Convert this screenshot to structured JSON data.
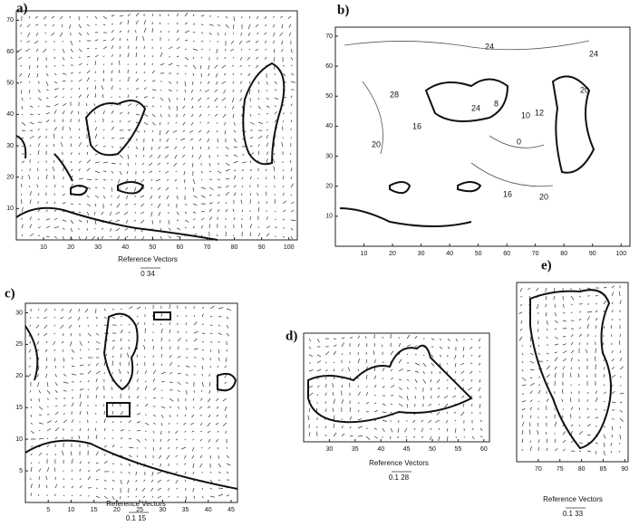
{
  "panels": [
    {
      "label": "a)",
      "xticks": [
        10,
        20,
        30,
        40,
        50,
        60,
        70,
        80,
        90,
        100
      ],
      "yticks": [
        10,
        20,
        30,
        40,
        50,
        60,
        70
      ],
      "reference": {
        "title": "Reference Vectors",
        "scale": "0  34"
      }
    },
    {
      "label": "b)",
      "xticks": [
        10,
        20,
        30,
        40,
        50,
        60,
        70,
        80,
        90,
        100
      ],
      "yticks": [
        10,
        20,
        30,
        40,
        50,
        60,
        70
      ],
      "contour_labels": [
        "24",
        "28",
        "24",
        "8",
        "10",
        "12",
        "0",
        "16",
        "20",
        "16",
        "20",
        "24",
        "20"
      ]
    },
    {
      "label": "c)",
      "xticks": [
        5,
        10,
        15,
        20,
        25,
        30,
        35,
        40,
        45
      ],
      "yticks": [
        5,
        10,
        15,
        20,
        25,
        30
      ],
      "reference": {
        "title": "Reference Vectors",
        "scale": "0.1  15"
      }
    },
    {
      "label": "d)",
      "xticks": [
        30,
        35,
        40,
        45,
        50,
        55,
        60
      ],
      "yticks": [],
      "reference": {
        "title": "Reference Vectors",
        "scale": "0.1  28"
      }
    },
    {
      "label": "e)",
      "xticks": [
        70,
        75,
        80,
        85,
        90
      ],
      "yticks": [],
      "reference": {
        "title": "Reference Vectors",
        "scale": "0.1  33"
      }
    }
  ]
}
